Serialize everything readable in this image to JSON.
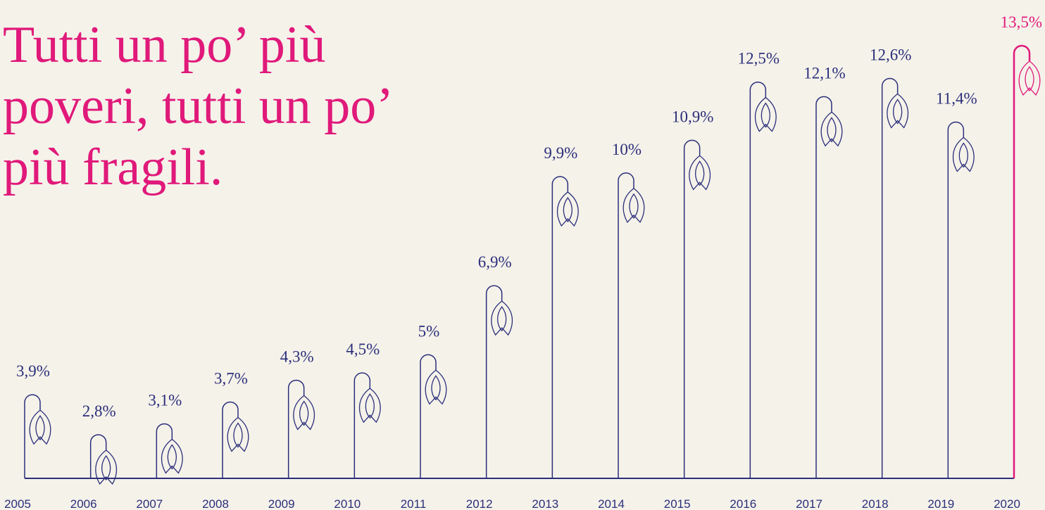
{
  "chart_data": {
    "type": "bar",
    "title_lines": [
      "Tutti un po’ più",
      "poveri, tutti un po’",
      "più fragili."
    ],
    "categories": [
      "2005",
      "2006",
      "2007",
      "2008",
      "2009",
      "2010",
      "2011",
      "2012",
      "2013",
      "2014",
      "2015",
      "2016",
      "2017",
      "2018",
      "2019",
      "2020"
    ],
    "values": [
      3.9,
      2.8,
      3.1,
      3.7,
      4.3,
      4.5,
      5,
      6.9,
      9.9,
      10,
      10.9,
      12.5,
      12.1,
      12.6,
      11.4,
      13.5
    ],
    "value_labels": [
      "3,9%",
      "2,8%",
      "3,1%",
      "3,7%",
      "4,3%",
      "4,5%",
      "5%",
      "6,9%",
      "9,9%",
      "10%",
      "10,9%",
      "12,5%",
      "12,1%",
      "12,6%",
      "11,4%",
      "13,5%"
    ],
    "colors": [
      "#2b2f7a",
      "#2b2f7a",
      "#2b2f7a",
      "#2b2f7a",
      "#2b2f7a",
      "#2b2f7a",
      "#2b2f7a",
      "#2b2f7a",
      "#2b2f7a",
      "#2b2f7a",
      "#2b2f7a",
      "#2b2f7a",
      "#2b2f7a",
      "#2b2f7a",
      "#2b2f7a",
      "#e0197a"
    ],
    "title_color": "#e0197a",
    "ylim": [
      1.6,
      14.1
    ]
  }
}
